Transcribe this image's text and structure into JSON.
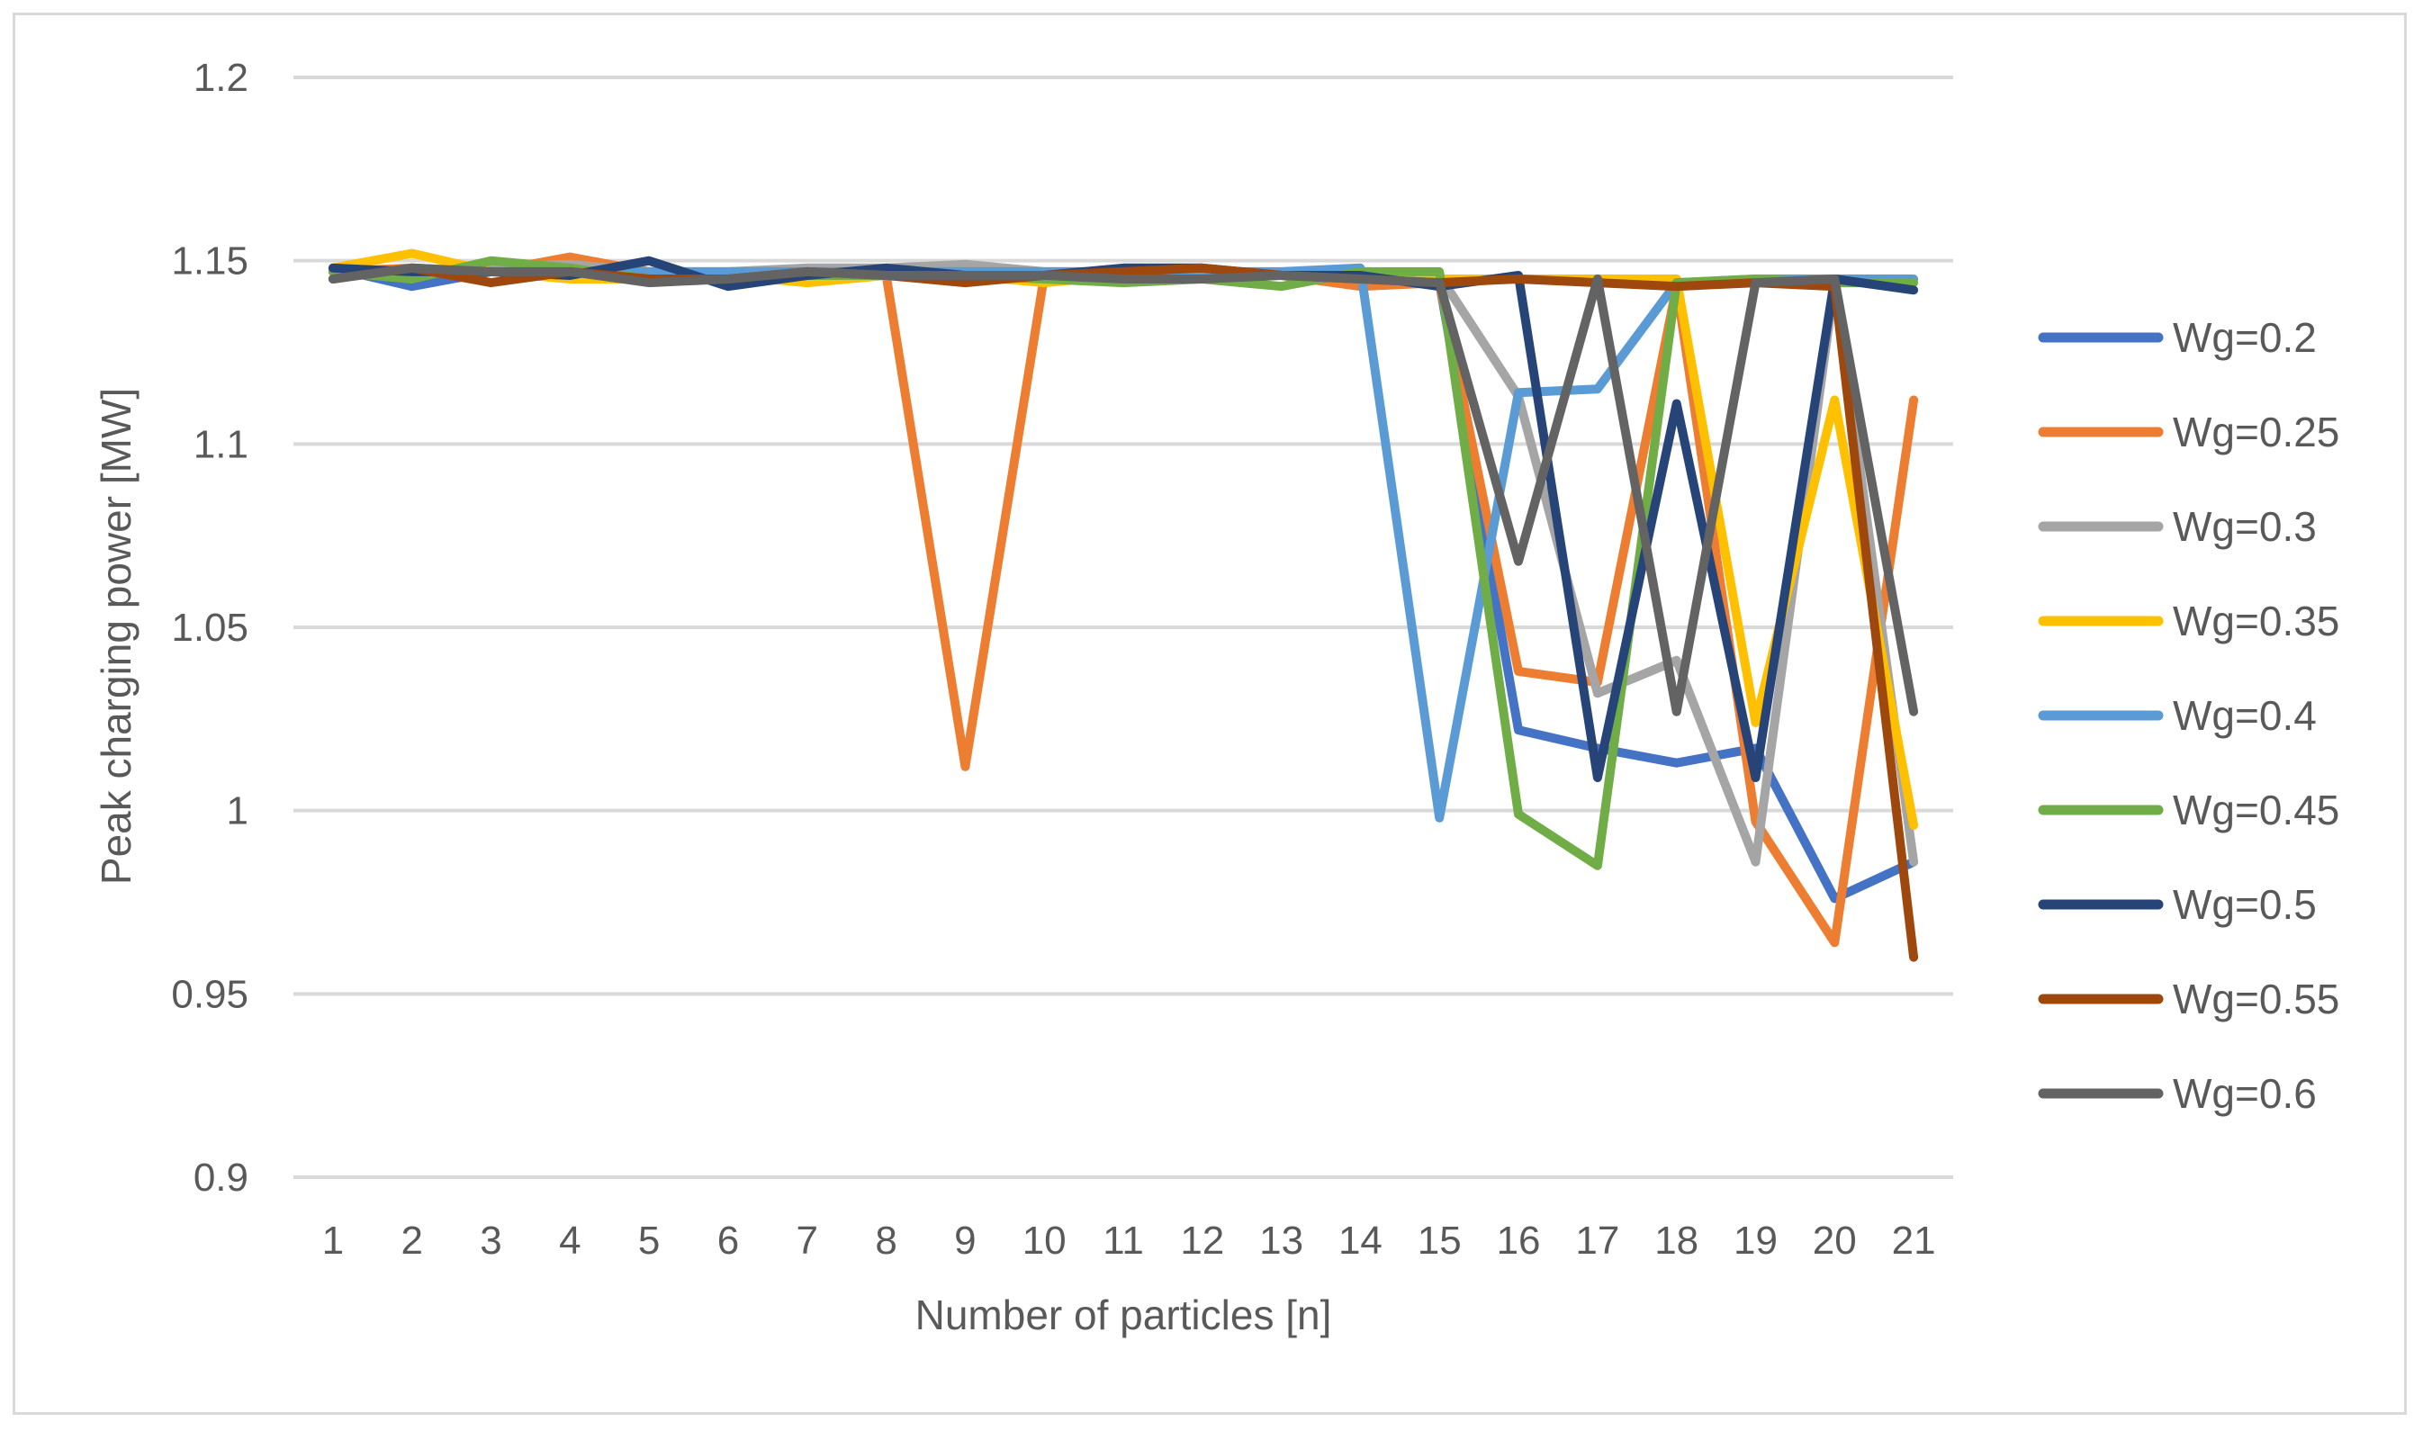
{
  "chart_data": {
    "type": "line",
    "title": "",
    "xlabel": "Number of particles [n]",
    "ylabel": "Peak charging power [MW]",
    "categories": [
      "1",
      "2",
      "3",
      "4",
      "5",
      "6",
      "7",
      "8",
      "9",
      "10",
      "11",
      "12",
      "13",
      "14",
      "15",
      "16",
      "17",
      "18",
      "19",
      "20",
      "21"
    ],
    "ylim": [
      0.9,
      1.2
    ],
    "yticks": [
      "0.9",
      "0.95",
      "1",
      "1.05",
      "1.1",
      "1.15",
      "1.2"
    ],
    "grid": "horizontal",
    "legend_position": "right",
    "series": [
      {
        "name": "Wg=0.2",
        "color": "#4472C4",
        "values": [
          1.148,
          1.143,
          1.147,
          1.149,
          1.146,
          1.145,
          1.146,
          1.147,
          1.146,
          1.146,
          1.147,
          1.146,
          1.146,
          1.146,
          1.144,
          1.022,
          1.017,
          1.013,
          1.017,
          0.976,
          0.986
        ]
      },
      {
        "name": "Wg=0.25",
        "color": "#ED7D31",
        "values": [
          1.147,
          1.148,
          1.147,
          1.151,
          1.147,
          1.146,
          1.147,
          1.146,
          1.012,
          1.146,
          1.146,
          1.146,
          1.146,
          1.143,
          1.144,
          1.038,
          1.035,
          1.143,
          0.997,
          0.964,
          1.112
        ]
      },
      {
        "name": "Wg=0.3",
        "color": "#A5A5A5",
        "values": [
          1.148,
          1.147,
          1.148,
          1.149,
          1.147,
          1.147,
          1.148,
          1.148,
          1.149,
          1.147,
          1.147,
          1.147,
          1.146,
          1.146,
          1.146,
          1.113,
          1.032,
          1.041,
          0.986,
          1.144,
          0.986
        ]
      },
      {
        "name": "Wg=0.35",
        "color": "#FFC000",
        "values": [
          1.148,
          1.152,
          1.147,
          1.145,
          1.145,
          1.146,
          1.144,
          1.146,
          1.146,
          1.144,
          1.146,
          1.146,
          1.146,
          1.146,
          1.145,
          1.145,
          1.145,
          1.145,
          1.024,
          1.112,
          0.996
        ]
      },
      {
        "name": "Wg=0.4",
        "color": "#5B9BD5",
        "values": [
          1.147,
          1.147,
          1.147,
          1.147,
          1.147,
          1.147,
          1.147,
          1.147,
          1.147,
          1.147,
          1.147,
          1.147,
          1.147,
          1.148,
          0.998,
          1.114,
          1.115,
          1.144,
          1.145,
          1.145,
          1.145
        ]
      },
      {
        "name": "Wg=0.45",
        "color": "#70AD47",
        "values": [
          1.147,
          1.145,
          1.15,
          1.148,
          1.145,
          1.145,
          1.146,
          1.146,
          1.146,
          1.145,
          1.144,
          1.145,
          1.143,
          1.147,
          1.147,
          0.999,
          0.985,
          1.144,
          1.145,
          1.144,
          1.144
        ]
      },
      {
        "name": "Wg=0.5",
        "color": "#264478",
        "values": [
          1.148,
          1.147,
          1.147,
          1.146,
          1.15,
          1.143,
          1.146,
          1.148,
          1.146,
          1.146,
          1.148,
          1.148,
          1.146,
          1.146,
          1.143,
          1.146,
          1.009,
          1.111,
          1.009,
          1.145,
          1.142
        ]
      },
      {
        "name": "Wg=0.55",
        "color": "#9E480E",
        "values": [
          1.145,
          1.148,
          1.144,
          1.147,
          1.145,
          1.145,
          1.147,
          1.146,
          1.144,
          1.146,
          1.147,
          1.148,
          1.146,
          1.145,
          1.144,
          1.145,
          1.144,
          1.143,
          1.144,
          1.143,
          0.96
        ]
      },
      {
        "name": "Wg=0.6",
        "color": "#636363",
        "values": [
          1.145,
          1.148,
          1.147,
          1.147,
          1.144,
          1.145,
          1.147,
          1.146,
          1.146,
          1.146,
          1.145,
          1.145,
          1.146,
          1.145,
          1.144,
          1.068,
          1.145,
          1.027,
          1.144,
          1.145,
          1.027
        ]
      }
    ]
  }
}
